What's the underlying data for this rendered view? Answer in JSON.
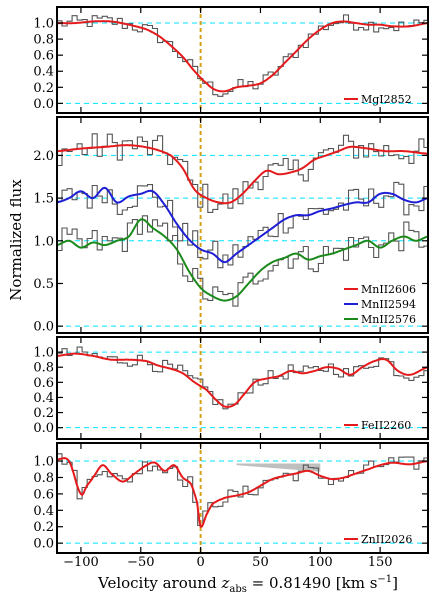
{
  "chart_data": {
    "type": "line",
    "xlabel": "Velocity around ",
    "xlabel_sym": "z",
    "xlabel_sub": "abs",
    "xlabel_tail": " = 0.81490 [km s",
    "xlabel_sup": "−1",
    "xlabel_end": "]",
    "ylabel": "Normalized flux",
    "xlim": [
      -120,
      190
    ],
    "xticks": [
      -100,
      -50,
      0,
      50,
      100,
      150
    ],
    "grid": false,
    "legend_position": "bottom-right",
    "colors": {
      "red": "#e41a1c",
      "blue": "#1f1fd6",
      "green": "#1b8a1b",
      "data": "#555555",
      "guide": "#00e5ff",
      "zero_line": "#d4a017",
      "shade": "#aaaaaa"
    },
    "panels": [
      {
        "ylim": [
          -0.12,
          1.2
        ],
        "yticks": [
          0.0,
          0.2,
          0.4,
          0.6,
          0.8,
          1.0
        ],
        "guides": [
          1.0,
          0.0
        ],
        "series": [
          {
            "name": "MgI2852",
            "color": "red",
            "x": [
              -120,
              -105,
              -90,
              -75,
              -60,
              -45,
              -35,
              -25,
              -15,
              -5,
              5,
              12,
              20,
              30,
              40,
              50,
              60,
              70,
              80,
              90,
              100,
              110,
              120,
              130,
              140,
              150,
              160,
              175,
              190
            ],
            "y": [
              1.0,
              1.0,
              1.02,
              1.02,
              0.98,
              0.92,
              0.84,
              0.72,
              0.58,
              0.4,
              0.25,
              0.17,
              0.15,
              0.2,
              0.22,
              0.25,
              0.35,
              0.5,
              0.65,
              0.8,
              0.92,
              1.0,
              1.02,
              1.0,
              0.98,
              0.98,
              0.96,
              0.96,
              1.0
            ]
          }
        ]
      },
      {
        "ylim": [
          -0.08,
          2.45
        ],
        "yticks": [
          0.0,
          0.5,
          1.0,
          1.5,
          2.0
        ],
        "guides": [
          2.0,
          1.5,
          1.0,
          0.0
        ],
        "series": [
          {
            "name": "MnII2606",
            "color": "red",
            "x": [
              -120,
              -100,
              -80,
              -60,
              -40,
              -25,
              -15,
              -5,
              5,
              15,
              25,
              35,
              45,
              55,
              65,
              75,
              85,
              95,
              105,
              115,
              125,
              140,
              155,
              170,
              190
            ],
            "y": [
              2.05,
              2.08,
              2.1,
              2.12,
              2.08,
              2.0,
              1.85,
              1.6,
              1.5,
              1.45,
              1.45,
              1.55,
              1.7,
              1.82,
              1.78,
              1.8,
              1.85,
              1.95,
              2.0,
              2.05,
              2.1,
              2.08,
              2.05,
              2.05,
              2.02
            ]
          },
          {
            "name": "MnII2594",
            "color": "blue",
            "x": [
              -120,
              -110,
              -100,
              -90,
              -80,
              -70,
              -60,
              -50,
              -40,
              -30,
              -20,
              -10,
              0,
              10,
              20,
              30,
              40,
              50,
              60,
              70,
              80,
              90,
              100,
              110,
              120,
              130,
              140,
              150,
              160,
              170,
              180,
              190
            ],
            "y": [
              1.45,
              1.5,
              1.58,
              1.5,
              1.62,
              1.45,
              1.52,
              1.55,
              1.58,
              1.42,
              1.2,
              1.02,
              0.9,
              0.85,
              0.75,
              0.85,
              0.95,
              1.05,
              1.15,
              1.25,
              1.3,
              1.3,
              1.35,
              1.38,
              1.42,
              1.45,
              1.45,
              1.55,
              1.55,
              1.48,
              1.45,
              1.5
            ]
          },
          {
            "name": "MnII2576",
            "color": "green",
            "x": [
              -120,
              -110,
              -100,
              -90,
              -80,
              -70,
              -60,
              -50,
              -40,
              -30,
              -20,
              -10,
              0,
              10,
              20,
              30,
              40,
              50,
              60,
              70,
              80,
              90,
              100,
              110,
              120,
              130,
              140,
              150,
              160,
              170,
              180,
              190
            ],
            "y": [
              0.95,
              1.0,
              0.92,
              0.98,
              0.95,
              1.0,
              1.05,
              1.25,
              1.15,
              1.05,
              0.9,
              0.65,
              0.45,
              0.35,
              0.3,
              0.35,
              0.5,
              0.65,
              0.75,
              0.8,
              0.85,
              0.78,
              0.82,
              0.85,
              0.9,
              0.95,
              1.0,
              0.92,
              1.0,
              1.05,
              1.0,
              1.05
            ]
          }
        ]
      },
      {
        "ylim": [
          -0.15,
          1.2
        ],
        "yticks": [
          0.0,
          0.2,
          0.4,
          0.6,
          0.8,
          1.0
        ],
        "guides": [
          1.0,
          0.0
        ],
        "series": [
          {
            "name": "FeII2260",
            "color": "red",
            "x": [
              -120,
              -105,
              -90,
              -75,
              -60,
              -45,
              -35,
              -25,
              -15,
              -5,
              5,
              12,
              20,
              28,
              35,
              45,
              55,
              65,
              75,
              85,
              95,
              105,
              115,
              125,
              135,
              145,
              155,
              165,
              175,
              190
            ],
            "y": [
              0.95,
              0.98,
              0.95,
              0.9,
              0.9,
              0.88,
              0.82,
              0.78,
              0.72,
              0.6,
              0.5,
              0.38,
              0.28,
              0.3,
              0.42,
              0.6,
              0.65,
              0.68,
              0.75,
              0.72,
              0.75,
              0.8,
              0.78,
              0.7,
              0.8,
              0.88,
              0.9,
              0.75,
              0.7,
              0.8
            ]
          }
        ]
      },
      {
        "ylim": [
          -0.12,
          1.22
        ],
        "yticks": [
          0.0,
          0.2,
          0.4,
          0.6,
          0.8,
          1.0
        ],
        "guides": [
          1.0,
          0.0
        ],
        "shade": {
          "x": [
            30,
            100
          ],
          "y_top": [
            0.97,
            0.97
          ],
          "y_bottom": [
            0.95,
            0.87
          ]
        },
        "series": [
          {
            "name": "ZnII2026",
            "color": "red",
            "x": [
              -120,
              -110,
              -100,
              -95,
              -90,
              -82,
              -75,
              -65,
              -55,
              -45,
              -38,
              -30,
              -22,
              -15,
              -8,
              -3,
              0,
              5,
              10,
              20,
              30,
              40,
              50,
              60,
              70,
              80,
              90,
              100,
              110,
              120,
              130,
              140,
              150,
              160,
              175,
              190
            ],
            "y": [
              1.02,
              1.0,
              0.6,
              0.7,
              0.8,
              0.95,
              0.85,
              0.75,
              0.85,
              0.95,
              0.98,
              0.88,
              0.95,
              0.8,
              0.72,
              0.5,
              0.2,
              0.35,
              0.48,
              0.55,
              0.58,
              0.62,
              0.7,
              0.78,
              0.82,
              0.85,
              0.88,
              0.82,
              0.78,
              0.8,
              0.85,
              0.9,
              0.95,
              0.98,
              0.96,
              1.0
            ]
          }
        ]
      }
    ]
  }
}
